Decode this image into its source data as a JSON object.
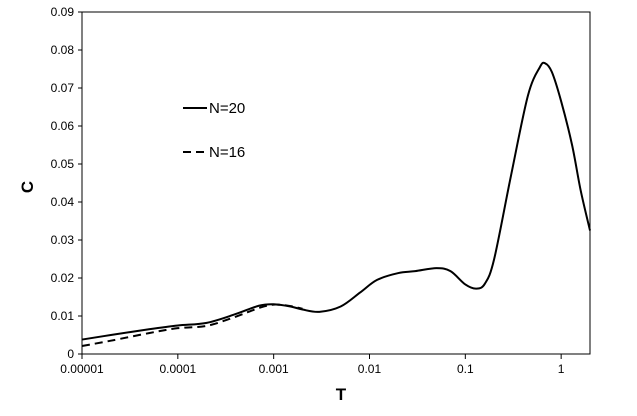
{
  "chart_data": {
    "type": "line",
    "xlabel": "T",
    "ylabel": "C",
    "xscale": "log",
    "xlim": [
      1e-05,
      2
    ],
    "ylim": [
      0,
      0.09
    ],
    "x_ticks": [
      1e-05,
      0.0001,
      0.001,
      0.01,
      0.1,
      1
    ],
    "x_tick_labels": [
      "0.00001",
      "0.0001",
      "0.001",
      "0.01",
      "0.1",
      "1"
    ],
    "y_ticks": [
      0,
      0.01,
      0.02,
      0.03,
      0.04,
      0.05,
      0.06,
      0.07,
      0.08,
      0.09
    ],
    "y_tick_labels": [
      "0",
      "0.01",
      "0.02",
      "0.03",
      "0.04",
      "0.05",
      "0.06",
      "0.07",
      "0.08",
      "0.09"
    ],
    "grid": false,
    "legend_position": "upper-left inside plot",
    "series": [
      {
        "name": "N=20",
        "style": "solid",
        "color": "#000000",
        "x": [
          1e-05,
          2e-05,
          5e-05,
          0.0001,
          0.0002,
          0.0004,
          0.0007,
          0.001,
          0.0015,
          0.002,
          0.003,
          0.005,
          0.008,
          0.012,
          0.02,
          0.03,
          0.05,
          0.07,
          0.1,
          0.13,
          0.16,
          0.2,
          0.3,
          0.45,
          0.6,
          0.68,
          0.8,
          1.0,
          1.3,
          1.6,
          2.0
        ],
        "y": [
          0.0038,
          0.005,
          0.0065,
          0.0075,
          0.0082,
          0.0105,
          0.0127,
          0.0131,
          0.0125,
          0.0117,
          0.0111,
          0.0125,
          0.0162,
          0.0195,
          0.0213,
          0.0218,
          0.0226,
          0.0218,
          0.0183,
          0.0172,
          0.0185,
          0.025,
          0.047,
          0.068,
          0.0755,
          0.0765,
          0.0742,
          0.0665,
          0.055,
          0.043,
          0.0325
        ]
      },
      {
        "name": "N=16",
        "style": "dashed",
        "color": "#000000",
        "x": [
          1e-05,
          2e-05,
          5e-05,
          0.0001,
          0.0002,
          0.0004,
          0.0007,
          0.001,
          0.0015,
          0.002
        ],
        "y": [
          0.0021,
          0.0035,
          0.0055,
          0.0068,
          0.0074,
          0.0098,
          0.0121,
          0.013,
          0.0126,
          0.0119
        ]
      }
    ]
  }
}
